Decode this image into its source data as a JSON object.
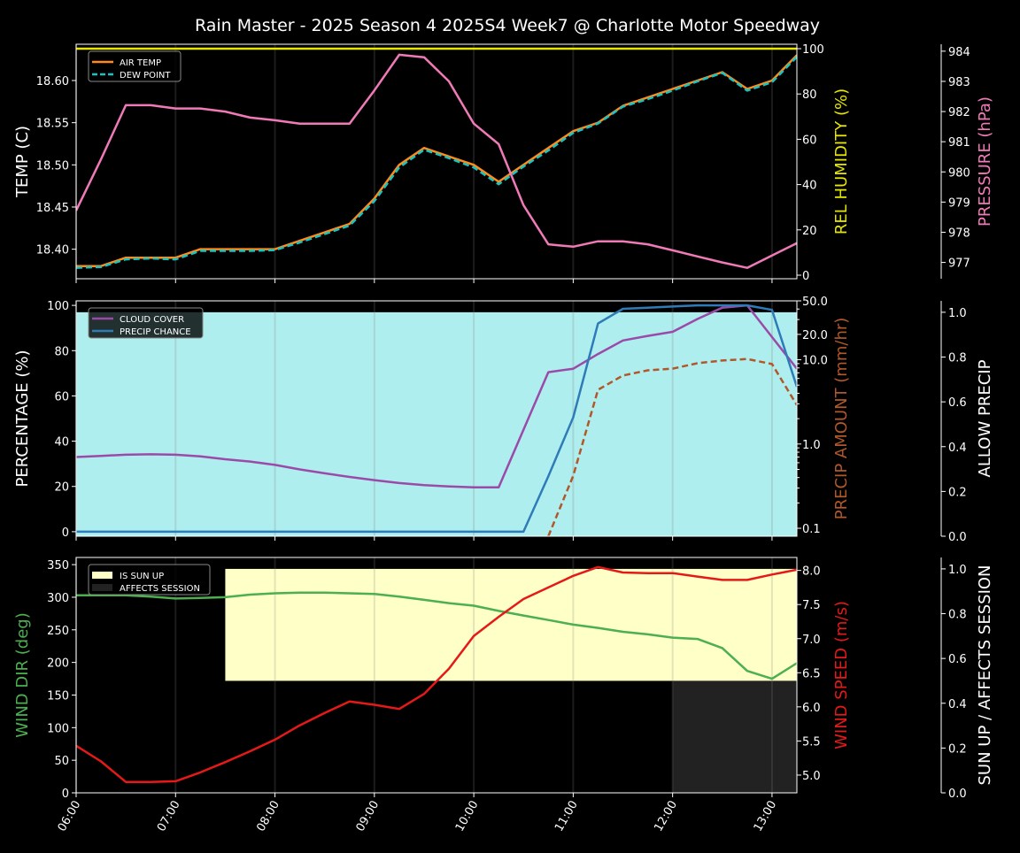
{
  "title": "Rain Master - 2025 Season 4 2025S4 Week7 @ Charlotte Motor Speedway",
  "chart_data": [
    {
      "type": "line",
      "x": [
        "06:00",
        "06:15",
        "06:30",
        "06:45",
        "07:00",
        "07:15",
        "07:30",
        "07:45",
        "08:00",
        "08:15",
        "08:30",
        "08:45",
        "09:00",
        "09:15",
        "09:30",
        "09:45",
        "10:00",
        "10:15",
        "10:30",
        "10:45",
        "11:00",
        "11:15",
        "11:30",
        "11:45",
        "12:00",
        "12:15",
        "12:30",
        "12:45",
        "13:00",
        "13:15"
      ],
      "x_ticks": [
        "06:00",
        "07:00",
        "08:00",
        "09:00",
        "10:00",
        "11:00",
        "12:00",
        "13:00"
      ],
      "ylabel": "TEMP (C)",
      "ylabel_right": "REL HUMIDITY (%)",
      "ylabel_right2": "PRESSURE (hPa)",
      "ylim": [
        18.365,
        18.643
      ],
      "ylim_right": [
        -1.56,
        101.95
      ],
      "ylim_right2": [
        976.46,
        984.23
      ],
      "y_ticks": [
        "18.40",
        "18.45",
        "18.50",
        "18.55",
        "18.60"
      ],
      "y_ticks_right": [
        "0",
        "20",
        "40",
        "60",
        "80",
        "100"
      ],
      "y_ticks_right2": [
        "977",
        "978",
        "979",
        "980",
        "981",
        "982",
        "983",
        "984"
      ],
      "legend": [
        "AIR TEMP",
        "DEW POINT"
      ],
      "legend_position": "upper-left",
      "series": [
        {
          "name": "AIR TEMP",
          "axis": "left",
          "color": "#ff8c1a",
          "dash": false,
          "values": [
            18.38,
            18.38,
            18.39,
            18.39,
            18.39,
            18.4,
            18.4,
            18.4,
            18.4,
            18.41,
            18.42,
            18.43,
            18.46,
            18.5,
            18.52,
            18.51,
            18.5,
            18.48,
            18.5,
            18.52,
            18.54,
            18.55,
            18.57,
            18.58,
            18.59,
            18.6,
            18.61,
            18.59,
            18.6,
            18.63
          ]
        },
        {
          "name": "DEW POINT",
          "axis": "left",
          "color": "#17c4c4",
          "dash": true,
          "values": [
            18.378,
            18.379,
            18.388,
            18.389,
            18.388,
            18.398,
            18.398,
            18.398,
            18.399,
            18.408,
            18.418,
            18.428,
            18.457,
            18.497,
            18.518,
            18.508,
            18.497,
            18.477,
            18.498,
            18.517,
            18.538,
            18.549,
            18.569,
            18.578,
            18.588,
            18.599,
            18.609,
            18.588,
            18.598,
            18.628
          ]
        },
        {
          "name": "REL HUMIDITY",
          "axis": "right",
          "color": "#e6e600",
          "dash": false,
          "values": [
            100,
            100,
            100,
            100,
            100,
            100,
            100,
            100,
            100,
            100,
            100,
            100,
            100,
            100,
            100,
            100,
            100,
            100,
            100,
            100,
            100,
            100,
            100,
            100,
            100,
            100,
            100,
            100,
            100,
            100
          ]
        },
        {
          "name": "PRESSURE",
          "axis": "right2",
          "color": "#f07ab8",
          "dash": false,
          "values": [
            978.72,
            980.42,
            982.21,
            982.21,
            982.1,
            982.1,
            982.0,
            981.8,
            981.71,
            981.6,
            981.6,
            981.6,
            982.7,
            983.88,
            983.8,
            983.0,
            981.6,
            980.92,
            978.9,
            977.6,
            977.52,
            977.7,
            977.7,
            977.6,
            977.4,
            977.2,
            977.0,
            976.82,
            977.23,
            977.64
          ]
        }
      ]
    },
    {
      "type": "line",
      "ylabel": "PERCENTAGE (%)",
      "ylabel_right": "PRECIP AMOUNT (mm/hr)",
      "ylabel_right2": "ALLOW PRECIP",
      "ylim": [
        -2,
        102
      ],
      "ylim_right": [
        0.0805,
        50
      ],
      "yscale_right": "log",
      "ylim_right2": [
        0,
        1.051
      ],
      "y_ticks": [
        "0",
        "20",
        "40",
        "60",
        "80",
        "100"
      ],
      "y_ticks_right": [
        "0.1",
        "1.0",
        "10.0",
        "20.0",
        "50.0"
      ],
      "y_ticks_right2": [
        "0.0",
        "0.2",
        "0.4",
        "0.6",
        "0.8",
        "1.0"
      ],
      "legend": [
        "CLOUD COVER",
        "PRECIP CHANCE"
      ],
      "legend_position": "upper-left",
      "series": [
        {
          "name": "ALLOW PRECIP",
          "axis": "right2",
          "color": "#afeeee",
          "fill": true,
          "values": [
            1,
            1,
            1,
            1,
            1,
            1,
            1,
            1,
            1,
            1,
            1,
            1,
            1,
            1,
            1,
            1,
            1,
            1,
            1,
            1,
            1,
            1,
            1,
            1,
            1,
            1,
            1,
            1,
            1,
            1
          ]
        },
        {
          "name": "CLOUD COVER",
          "axis": "left",
          "color": "#9b4aa8",
          "dash": false,
          "values": [
            33,
            33.5,
            34,
            34.2,
            34,
            33.3,
            32,
            31,
            29.5,
            27.5,
            25.8,
            24.2,
            22.8,
            21.5,
            20.6,
            20,
            19.6,
            19.6,
            45,
            70.5,
            72,
            78.5,
            84.5,
            86.5,
            88.3,
            94,
            99,
            100,
            86,
            72
          ]
        },
        {
          "name": "PRECIP CHANCE",
          "axis": "left",
          "color": "#2e7bb8",
          "dash": false,
          "values": [
            0,
            0,
            0,
            0,
            0,
            0,
            0,
            0,
            0,
            0,
            0,
            0,
            0,
            0,
            0,
            0,
            0,
            0,
            0,
            24.5,
            50.5,
            92,
            98.5,
            99,
            99.5,
            100,
            100,
            100,
            98,
            64
          ]
        },
        {
          "name": "PRECIP AMOUNT",
          "axis": "right",
          "color": "#b0582a",
          "dash": true,
          "values": [
            null,
            null,
            null,
            null,
            null,
            null,
            null,
            null,
            null,
            null,
            null,
            null,
            null,
            null,
            null,
            null,
            null,
            null,
            null,
            0.08,
            0.42,
            4.4,
            6.5,
            7.5,
            7.85,
            9.1,
            9.8,
            10.2,
            8.9,
            2.9
          ]
        }
      ]
    },
    {
      "type": "line",
      "ylabel": "WIND DIR (deg)",
      "ylabel_right": "WIND SPEED (m/s)",
      "ylabel_right2": "SUN UP / AFFECTS SESSION",
      "ylim": [
        0,
        361
      ],
      "ylim_right": [
        4.74,
        8.19
      ],
      "ylim_right2": [
        0,
        1.051
      ],
      "y_ticks": [
        "0",
        "50",
        "100",
        "150",
        "200",
        "250",
        "300",
        "350"
      ],
      "y_ticks_right": [
        "5.0",
        "5.5",
        "6.0",
        "6.5",
        "7.0",
        "7.5",
        "8.0"
      ],
      "y_ticks_right2": [
        "0.0",
        "0.2",
        "0.4",
        "0.6",
        "0.8",
        "1.0"
      ],
      "legend": [
        "IS SUN UP",
        "AFFECTS SESSION"
      ],
      "legend_position": "upper-left",
      "series": [
        {
          "name": "IS SUN UP",
          "axis": "right2",
          "color": "#ffffc8",
          "band": [
            0.5,
            1.0
          ],
          "values": [
            0,
            0,
            0,
            0,
            0,
            0,
            1,
            1,
            1,
            1,
            1,
            1,
            1,
            1,
            1,
            1,
            1,
            1,
            1,
            1,
            1,
            1,
            1,
            1,
            1,
            1,
            1,
            1,
            1,
            1
          ]
        },
        {
          "name": "AFFECTS SESSION",
          "axis": "right2",
          "color": "#222222",
          "band": [
            0,
            0.5
          ],
          "values": [
            0,
            0,
            0,
            0,
            0,
            0,
            0,
            0,
            0,
            0,
            0,
            0,
            0,
            0,
            0,
            0,
            0,
            0,
            0,
            0,
            0,
            0,
            0,
            0,
            1,
            1,
            1,
            1,
            1,
            1
          ]
        },
        {
          "name": "WIND DIR",
          "axis": "left",
          "color": "#4caf50",
          "dash": false,
          "values": [
            303,
            303,
            303,
            301,
            298,
            299,
            300,
            304,
            306,
            307,
            307,
            306,
            305,
            301,
            296,
            291,
            287,
            279,
            272,
            265,
            258,
            253,
            247,
            243,
            238,
            236,
            222,
            187,
            175,
            199
          ]
        },
        {
          "name": "WIND SPEED",
          "axis": "right",
          "color": "#e61919",
          "dash": false,
          "values": [
            5.43,
            5.2,
            4.9,
            4.9,
            4.91,
            5.04,
            5.19,
            5.35,
            5.52,
            5.73,
            5.91,
            6.08,
            6.03,
            5.97,
            6.19,
            6.56,
            7.04,
            7.32,
            7.58,
            7.75,
            7.92,
            8.05,
            7.97,
            7.96,
            7.96,
            7.91,
            7.86,
            7.86,
            7.94,
            8.01
          ]
        }
      ]
    }
  ],
  "colors": {
    "background": "#000000",
    "axis": "#ffffff",
    "left_label_1": "#ffffff",
    "right_label_1": "#e6e600",
    "right2_label_1": "#f07ab8",
    "left_label_2": "#ffffff",
    "right_label_2": "#b0582a",
    "right2_label_2": "#ffffff",
    "left_label_3": "#4caf50",
    "right_label_3": "#e61919",
    "right2_label_3": "#ffffff"
  }
}
